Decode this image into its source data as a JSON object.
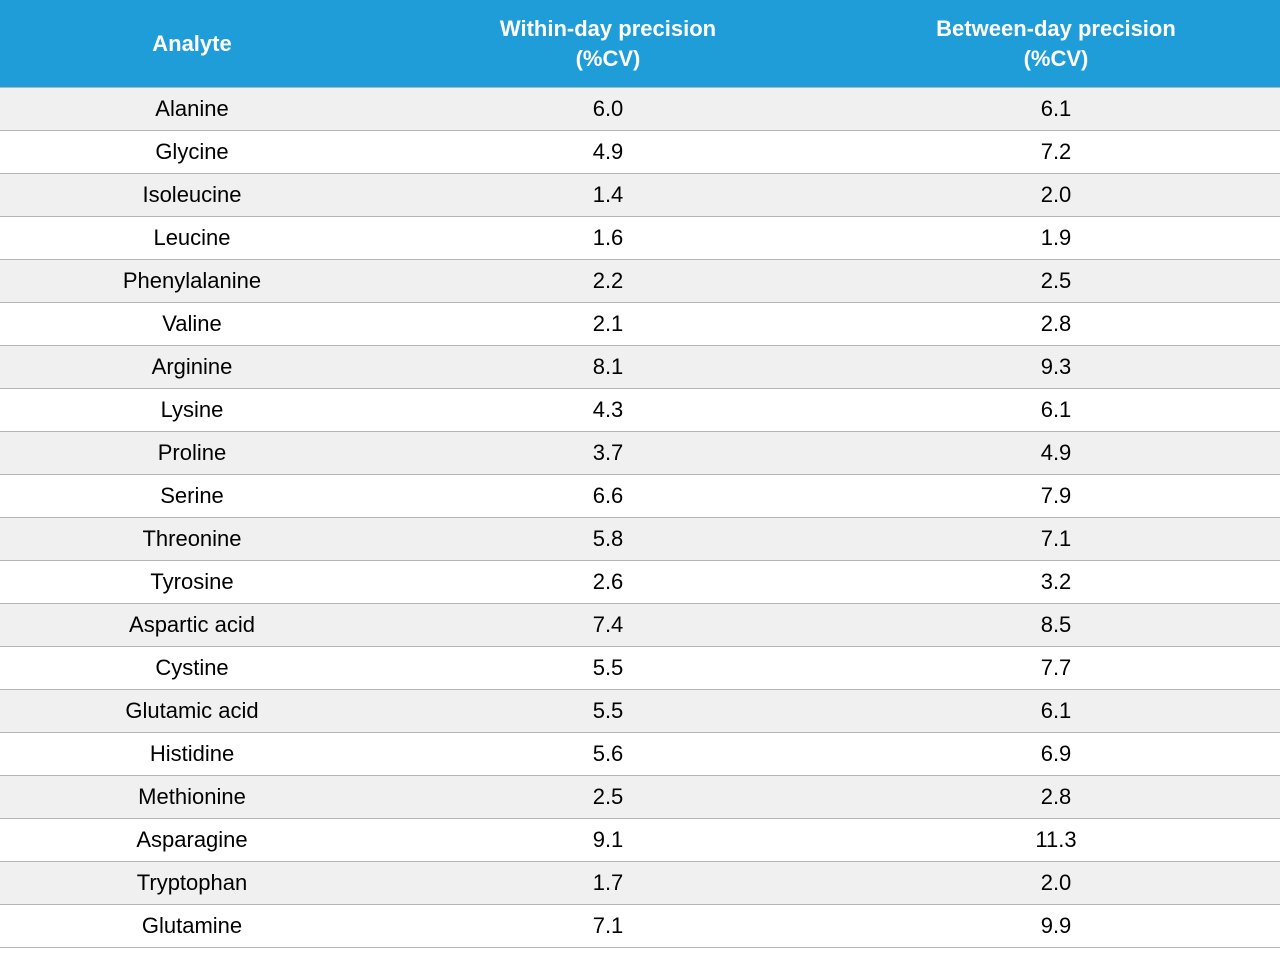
{
  "table": {
    "type": "table",
    "header_bg": "#1e9dd8",
    "header_text_color": "#ffffff",
    "row_alt_bg": "#f0f0f0",
    "row_bg": "#ffffff",
    "border_color": "#b5b5b5",
    "font_size_pt": 16,
    "columns": [
      {
        "label_line1": "Analyte",
        "label_line2": "",
        "align": "center",
        "width_pct": 30
      },
      {
        "label_line1": "Within-day precision",
        "label_line2": "(%CV)",
        "align": "center",
        "width_pct": 35
      },
      {
        "label_line1": "Between-day precision",
        "label_line2": "(%CV)",
        "align": "center",
        "width_pct": 35
      }
    ],
    "rows": [
      {
        "analyte": "Alanine",
        "within": "6.0",
        "between": "6.1"
      },
      {
        "analyte": "Glycine",
        "within": "4.9",
        "between": "7.2"
      },
      {
        "analyte": "Isoleucine",
        "within": "1.4",
        "between": "2.0"
      },
      {
        "analyte": "Leucine",
        "within": "1.6",
        "between": "1.9"
      },
      {
        "analyte": "Phenylalanine",
        "within": "2.2",
        "between": "2.5"
      },
      {
        "analyte": "Valine",
        "within": "2.1",
        "between": "2.8"
      },
      {
        "analyte": "Arginine",
        "within": "8.1",
        "between": "9.3"
      },
      {
        "analyte": "Lysine",
        "within": "4.3",
        "between": "6.1"
      },
      {
        "analyte": "Proline",
        "within": "3.7",
        "between": "4.9"
      },
      {
        "analyte": "Serine",
        "within": "6.6",
        "between": "7.9"
      },
      {
        "analyte": "Threonine",
        "within": "5.8",
        "between": "7.1"
      },
      {
        "analyte": "Tyrosine",
        "within": "2.6",
        "between": "3.2"
      },
      {
        "analyte": "Aspartic acid",
        "within": "7.4",
        "between": "8.5"
      },
      {
        "analyte": "Cystine",
        "within": "5.5",
        "between": "7.7"
      },
      {
        "analyte": "Glutamic acid",
        "within": "5.5",
        "between": "6.1"
      },
      {
        "analyte": "Histidine",
        "within": "5.6",
        "between": "6.9"
      },
      {
        "analyte": "Methionine",
        "within": "2.5",
        "between": "2.8"
      },
      {
        "analyte": "Asparagine",
        "within": "9.1",
        "between": "11.3"
      },
      {
        "analyte": "Tryptophan",
        "within": "1.7",
        "between": "2.0"
      },
      {
        "analyte": "Glutamine",
        "within": "7.1",
        "between": "9.9"
      }
    ]
  }
}
